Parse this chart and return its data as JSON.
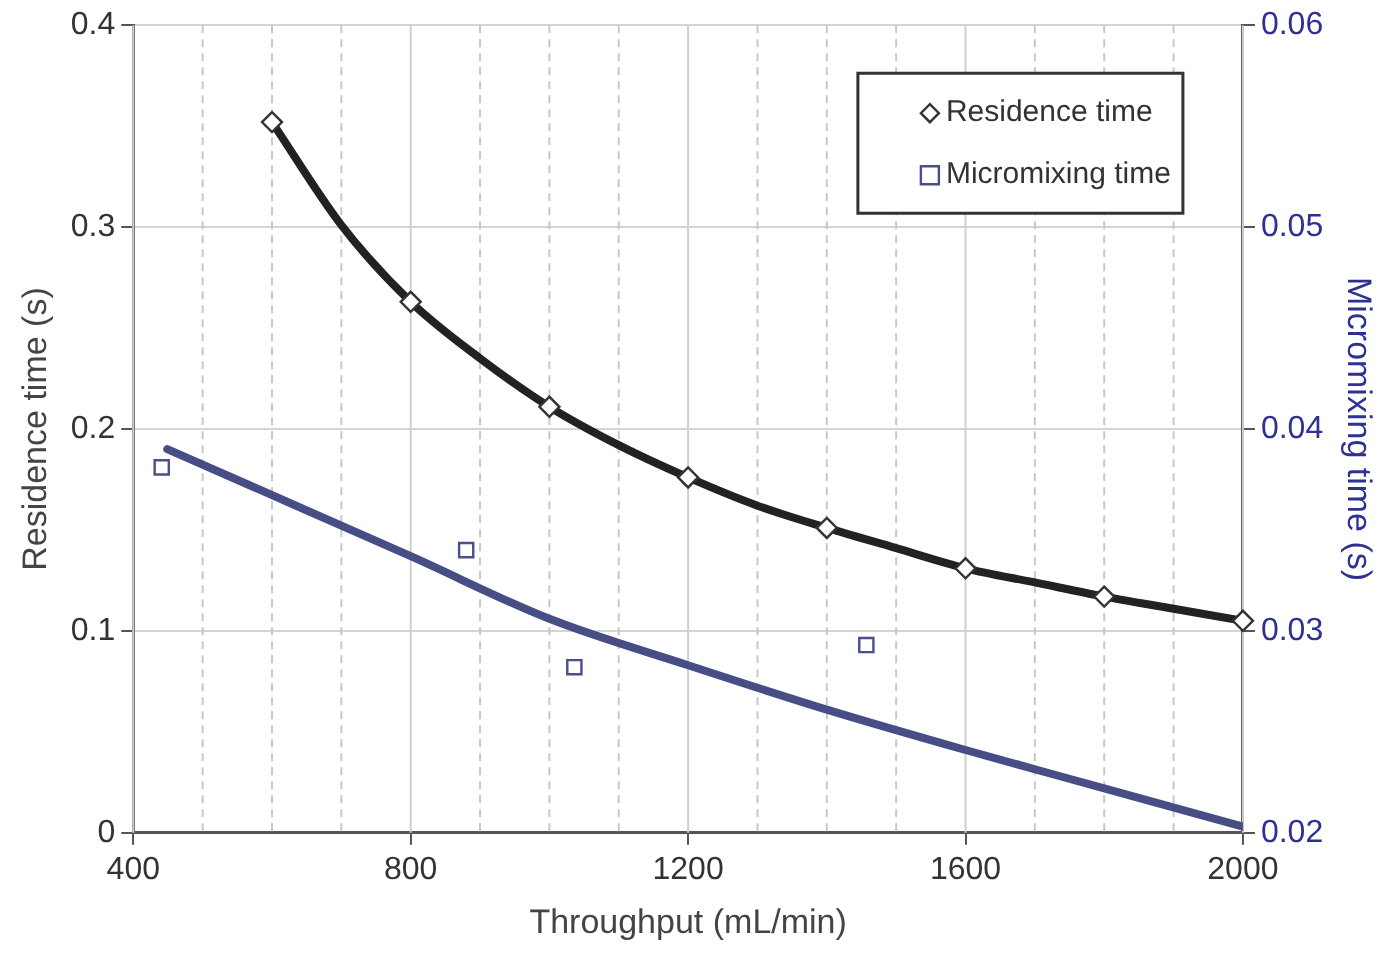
{
  "chart_data": {
    "type": "scatter",
    "xlabel": "Throughput (mL/min)",
    "ylabel": "Residence time (s)",
    "y2label": "Micromixing time (s)",
    "xlim": [
      400,
      2000
    ],
    "xticks": [
      400,
      {
        "value": 500,
        "label": null
      },
      {
        "value": 600,
        "label": null
      },
      {
        "value": 700,
        "label": null
      },
      800,
      {
        "value": 900,
        "label": null
      },
      {
        "value": 1000,
        "label": null
      },
      {
        "value": 1100,
        "label": null
      },
      1200,
      {
        "value": 1300,
        "label": null
      },
      {
        "value": 1400,
        "label": null
      },
      {
        "value": 1500,
        "label": null
      },
      1600,
      {
        "value": 1700,
        "label": null
      },
      {
        "value": 1800,
        "label": null
      },
      {
        "value": 1900,
        "label": null
      },
      2000
    ],
    "ylim": [
      0,
      0.4
    ],
    "yticks": [
      0,
      0.1,
      0.2,
      0.3,
      0.4
    ],
    "y2lim": [
      0.02,
      0.06
    ],
    "y2ticks": [
      0.02,
      0.03,
      0.04,
      0.05,
      0.06
    ],
    "grid": true,
    "legend": "top right",
    "series": [
      {
        "type": "line",
        "color": "#222222",
        "x": [
          600,
          700,
          800,
          900,
          1000,
          1100,
          1200,
          1300,
          1400,
          1500,
          1600,
          1700,
          1800,
          1900,
          2000
        ],
        "values": [
          0.352,
          0.301,
          0.263,
          0.235,
          0.211,
          0.192,
          0.176,
          0.162,
          0.151,
          0.141,
          0.131,
          0.124,
          0.117,
          0.111,
          0.105
        ]
      },
      {
        "type": "line",
        "color": "#474d85",
        "axis": "y2",
        "x": [
          449,
          800,
          1000,
          1200,
          1400,
          1600,
          1800,
          2000
        ],
        "values": [
          0.039,
          0.0337,
          0.0306,
          0.0283,
          0.0261,
          0.0241,
          0.0222,
          0.0203
        ]
      },
      {
        "type": "scatter",
        "name": "Residence time",
        "color": "#333333",
        "marker": "diamond",
        "x": [
          600,
          800,
          1000,
          1200,
          1400,
          1600,
          1800,
          2000
        ],
        "values": [
          0.352,
          0.263,
          0.211,
          0.176,
          0.151,
          0.131,
          0.117,
          0.105
        ]
      },
      {
        "type": "scatter",
        "name": "Micromixing time",
        "color": "#4a4f8c",
        "marker": "square",
        "axis": "y2",
        "x": [
          441,
          880,
          1036,
          1457
        ],
        "values": [
          0.0381,
          0.034,
          0.0282,
          0.0293
        ]
      }
    ]
  }
}
